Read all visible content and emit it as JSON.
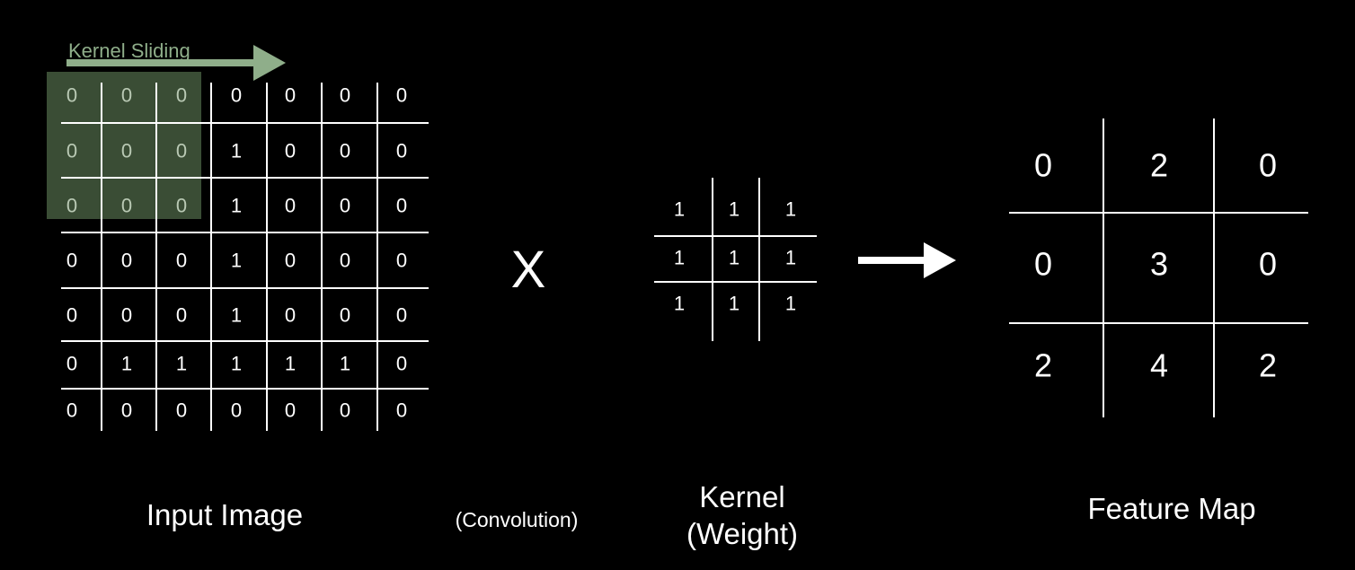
{
  "input_image": {
    "label": "Input Image",
    "rows": [
      [
        "0",
        "0",
        "0",
        "0",
        "0",
        "0",
        "0"
      ],
      [
        "0",
        "0",
        "0",
        "1",
        "0",
        "0",
        "0"
      ],
      [
        "0",
        "0",
        "0",
        "1",
        "0",
        "0",
        "0"
      ],
      [
        "0",
        "0",
        "0",
        "1",
        "0",
        "0",
        "0"
      ],
      [
        "0",
        "0",
        "0",
        "1",
        "0",
        "0",
        "0"
      ],
      [
        "0",
        "1",
        "1",
        "1",
        "1",
        "1",
        "0"
      ],
      [
        "0",
        "0",
        "0",
        "0",
        "0",
        "0",
        "0"
      ]
    ]
  },
  "kernel_window": {
    "label": "Kernel Sliding",
    "color": "#8fae8a",
    "fill_color": "#3a4d35"
  },
  "operator": {
    "symbol": "X",
    "label": "(Convolution)"
  },
  "kernel": {
    "label_line1": "Kernel",
    "label_line2": "(Weight)",
    "rows": [
      [
        "1",
        "1",
        "1"
      ],
      [
        "1",
        "1",
        "1"
      ],
      [
        "1",
        "1",
        "1"
      ]
    ]
  },
  "feature_map": {
    "label": "Feature Map",
    "rows": [
      [
        "0",
        "2",
        "0"
      ],
      [
        "0",
        "3",
        "0"
      ],
      [
        "2",
        "4",
        "2"
      ]
    ]
  }
}
